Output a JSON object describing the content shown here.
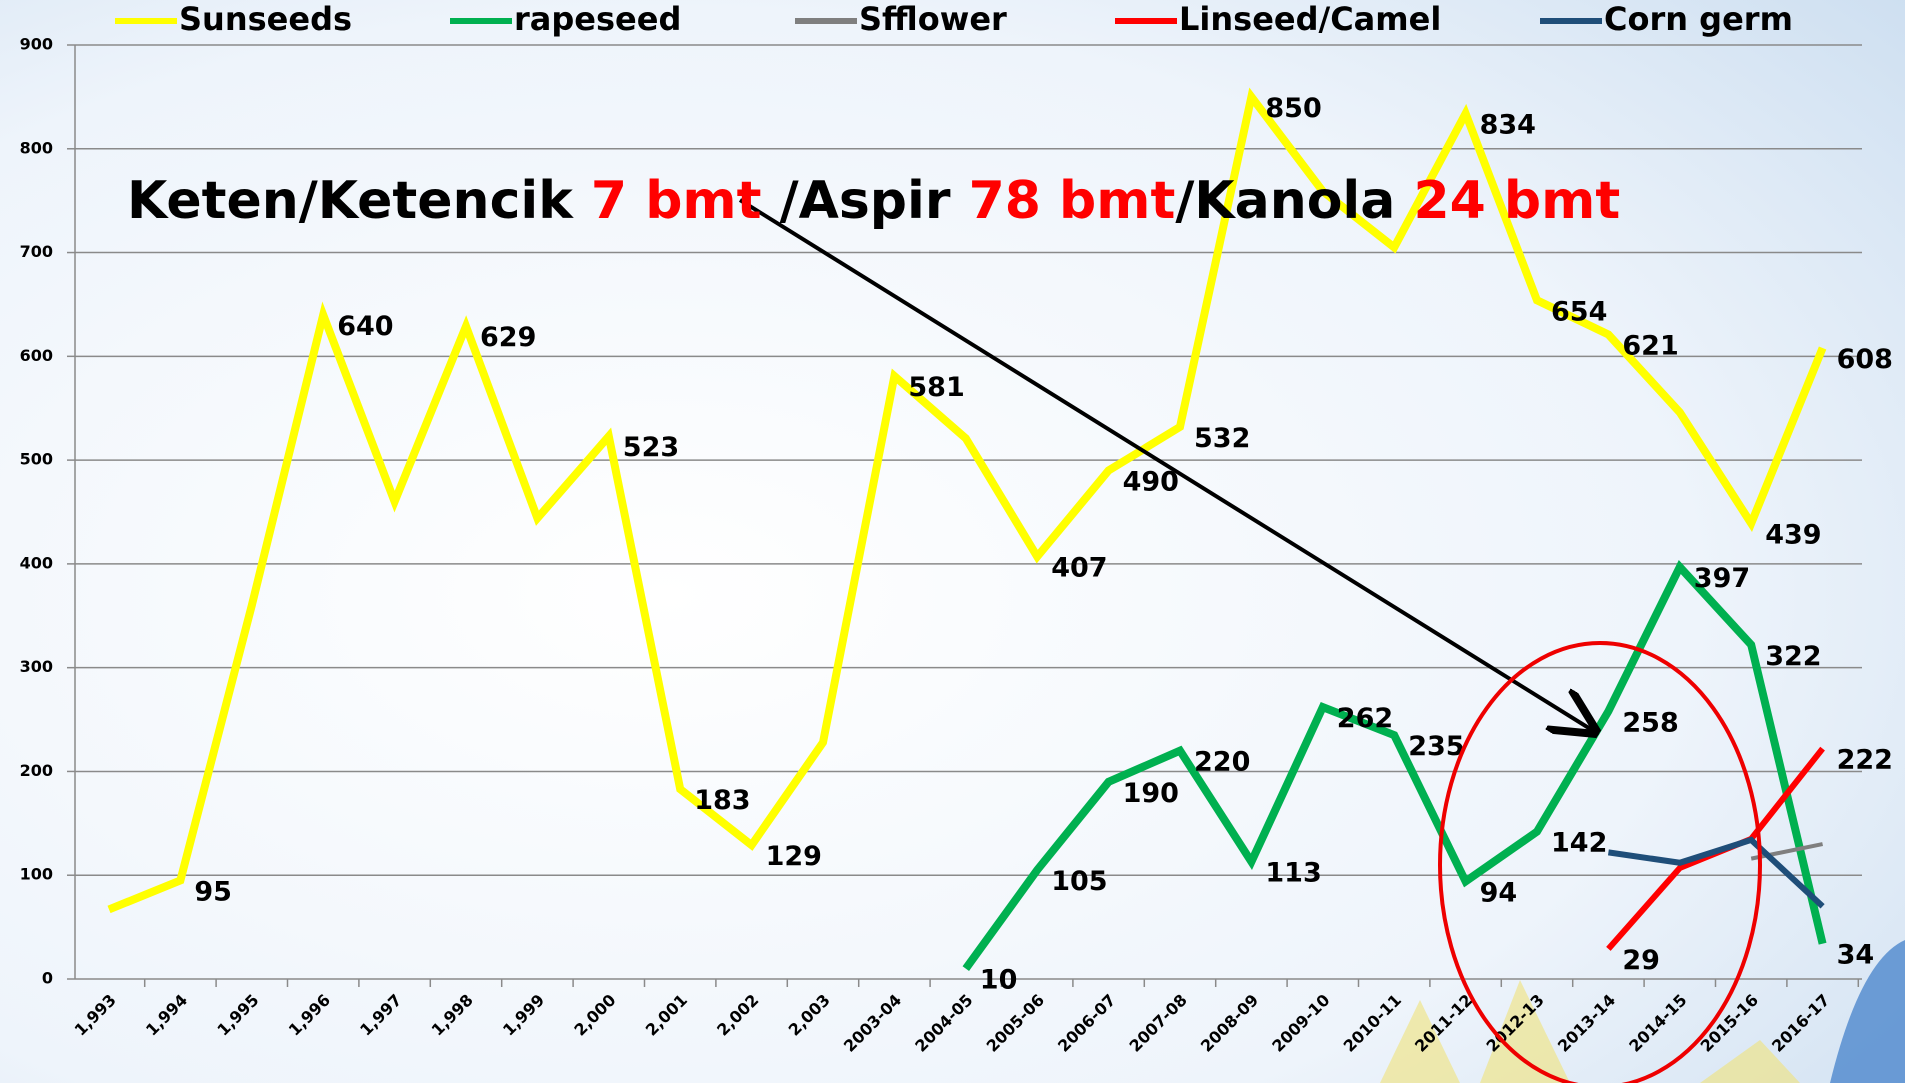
{
  "chart_data": {
    "type": "line",
    "annotation": [
      "Keten/Ketencik ",
      "7 bmt",
      " /Aspir ",
      "78 bmt",
      "/Kanola ",
      "24 bmt"
    ],
    "categories": [
      "1,993",
      "1,994",
      "1,995",
      "1,996",
      "1,997",
      "1,998",
      "1,999",
      "2,000",
      "2,001",
      "2,002",
      "2,003",
      "2003-04",
      "2004-05",
      "2005-06",
      "2006-07",
      "2007-08",
      "2008-09",
      "2009-10",
      "2010-11",
      "2011-12",
      "2012-13",
      "2013-14",
      "2014-15",
      "2015-16",
      "2016-17"
    ],
    "series": [
      {
        "name": "Sunseeds",
        "color": "#ffff00",
        "values": [
          67,
          95,
          360,
          640,
          460,
          629,
          444,
          523,
          183,
          129,
          228,
          581,
          521,
          407,
          490,
          532,
          850,
          759,
          705,
          834,
          654,
          621,
          546,
          439,
          608
        ],
        "value_labels": [
          null,
          95,
          null,
          640,
          null,
          629,
          null,
          523,
          183,
          129,
          null,
          581,
          null,
          407,
          490,
          532,
          850,
          null,
          null,
          834,
          654,
          621,
          null,
          439,
          608
        ]
      },
      {
        "name": "rapeseed",
        "color": "#00b050",
        "values": [
          null,
          null,
          null,
          null,
          null,
          null,
          null,
          null,
          null,
          null,
          null,
          null,
          10,
          105,
          190,
          220,
          113,
          262,
          235,
          94,
          142,
          258,
          397,
          322,
          34
        ],
        "value_labels": [
          null,
          null,
          null,
          null,
          null,
          null,
          null,
          null,
          null,
          null,
          null,
          null,
          10,
          105,
          190,
          220,
          113,
          262,
          235,
          94,
          142,
          258,
          397,
          322,
          34
        ]
      },
      {
        "name": "Sfflower",
        "color": "#7f7f7f",
        "values": [
          null,
          null,
          null,
          null,
          null,
          null,
          null,
          null,
          null,
          null,
          null,
          null,
          null,
          null,
          null,
          null,
          null,
          null,
          null,
          null,
          null,
          null,
          null,
          116,
          130
        ]
      },
      {
        "name": "Linseed/Camel",
        "color": "#ff0000",
        "values": [
          null,
          null,
          null,
          null,
          null,
          null,
          null,
          null,
          null,
          null,
          null,
          null,
          null,
          null,
          null,
          null,
          null,
          null,
          null,
          null,
          null,
          29,
          107,
          135,
          222
        ],
        "value_labels": [
          null,
          null,
          null,
          null,
          null,
          null,
          null,
          null,
          null,
          null,
          null,
          null,
          null,
          null,
          null,
          null,
          null,
          null,
          null,
          null,
          null,
          29,
          null,
          null,
          222
        ]
      },
      {
        "name": "Corn germ",
        "color": "#1f4e79",
        "values": [
          null,
          null,
          null,
          null,
          null,
          null,
          null,
          null,
          null,
          null,
          null,
          null,
          null,
          null,
          null,
          null,
          null,
          null,
          null,
          null,
          null,
          122,
          112,
          134,
          70
        ]
      }
    ],
    "ylim": [
      0,
      900
    ],
    "yticks": [
      0,
      100,
      200,
      300,
      400,
      500,
      600,
      700,
      800,
      900
    ],
    "grid": true
  }
}
